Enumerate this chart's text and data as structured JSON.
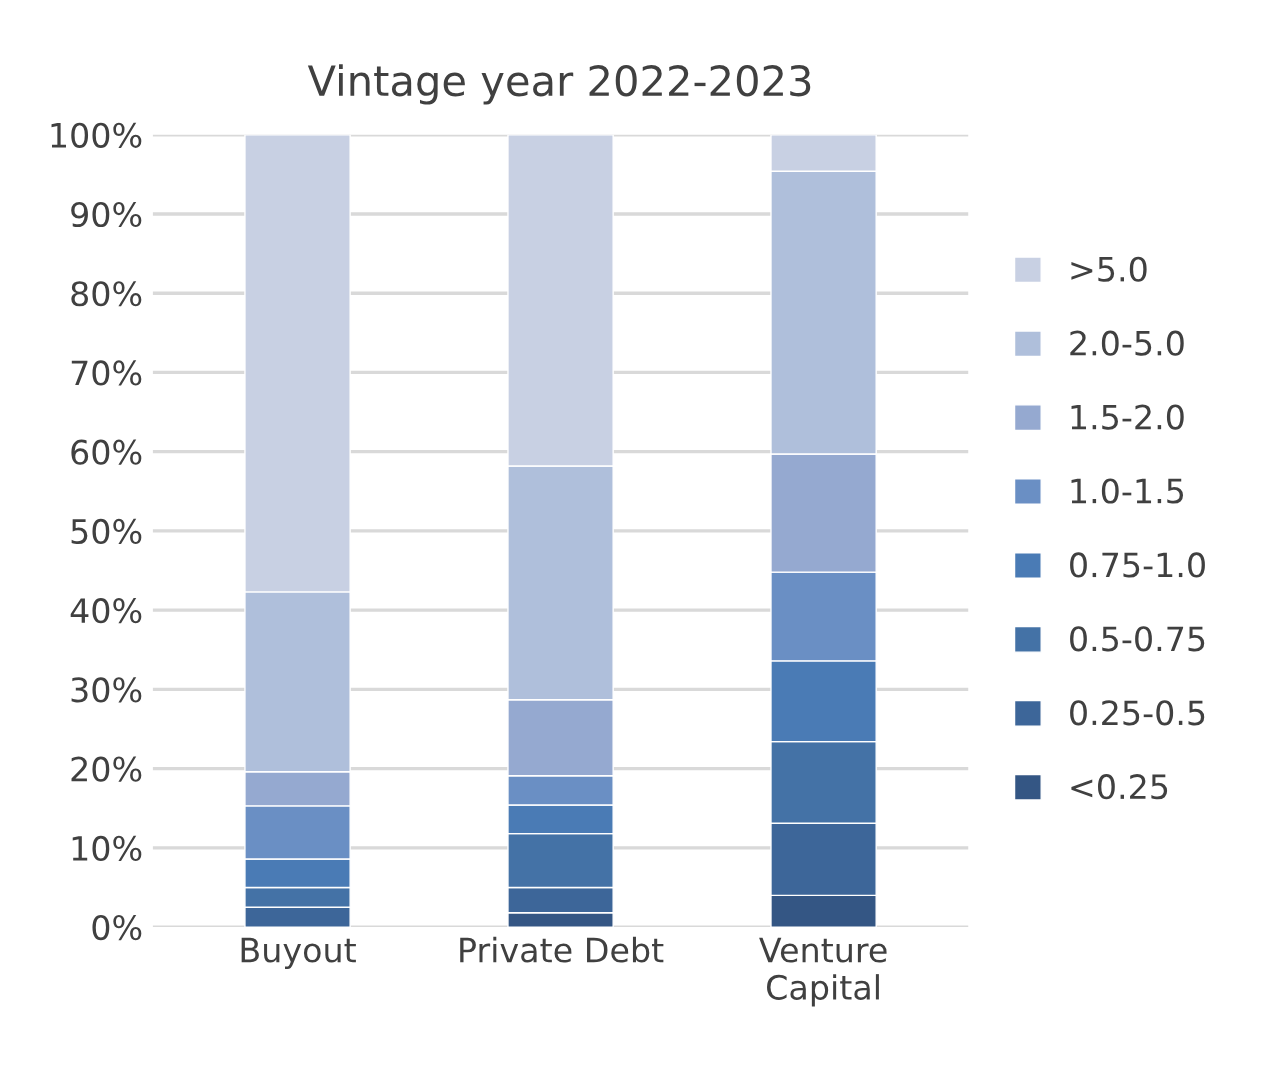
{
  "chart_data": {
    "type": "bar",
    "title": "Vintage year 2022-2023",
    "stacked": true,
    "categories": [
      "Buyout",
      "Private Debt",
      "Venture Capital"
    ],
    "series": [
      {
        "name": "<0.25",
        "color": "#345684",
        "values": [
          0,
          1.8,
          4.0
        ]
      },
      {
        "name": "0.25-0.5",
        "color": "#3d6699",
        "values": [
          2.5,
          3.2,
          9.1
        ]
      },
      {
        "name": "0.5-0.75",
        "color": "#4472a6",
        "values": [
          2.5,
          6.8,
          10.3
        ]
      },
      {
        "name": "0.75-1.0",
        "color": "#4a7bb5",
        "values": [
          3.6,
          3.6,
          10.2
        ]
      },
      {
        "name": "1.0-1.5",
        "color": "#6a8fc4",
        "values": [
          6.7,
          3.7,
          11.2
        ]
      },
      {
        "name": "1.5-2.0",
        "color": "#95a9d0",
        "values": [
          4.3,
          9.6,
          14.9
        ]
      },
      {
        "name": "2.0-5.0",
        "color": "#afbfdb",
        "values": [
          22.7,
          29.5,
          35.7
        ]
      },
      {
        "name": ">5.0",
        "color": "#c8d0e3",
        "values": [
          57.7,
          41.8,
          4.6
        ]
      }
    ],
    "ylim": [
      0,
      100
    ],
    "yticks": [
      {
        "value": 0,
        "label": "0%"
      },
      {
        "value": 10,
        "label": "10%"
      },
      {
        "value": 20,
        "label": "20%"
      },
      {
        "value": 30,
        "label": "30%"
      },
      {
        "value": 40,
        "label": "40%"
      },
      {
        "value": 50,
        "label": "50%"
      },
      {
        "value": 60,
        "label": "60%"
      },
      {
        "value": 70,
        "label": "70%"
      },
      {
        "value": 80,
        "label": "80%"
      },
      {
        "value": 90,
        "label": "90%"
      },
      {
        "value": 100,
        "label": "100%"
      }
    ],
    "grid": "y",
    "legend": "right"
  }
}
